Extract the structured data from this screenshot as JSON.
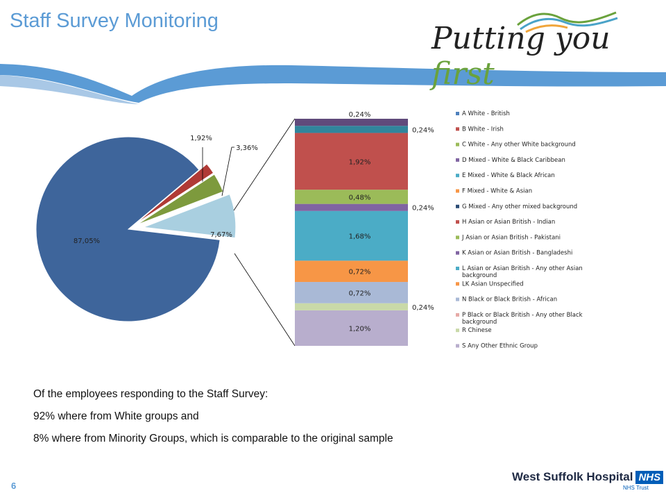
{
  "header": {
    "title": "Staff Survey Monitoring",
    "logo_text_main": "Putting you ",
    "logo_text_accent": "first"
  },
  "chart_data": {
    "type": "pie",
    "pie": {
      "slices": [
        {
          "label": "87,05%",
          "value": 87.05,
          "color": "#3e659b"
        },
        {
          "label": "1,92%",
          "value": 1.92,
          "color": "#b03a36"
        },
        {
          "label": "3,36%",
          "value": 3.36,
          "color": "#7d9a3d"
        },
        {
          "label": "7,67%",
          "value": 7.67,
          "color": "#a9cfe0"
        }
      ]
    },
    "stacked_bar": {
      "segments": [
        {
          "label": "1,20%",
          "value": 1.2,
          "color": "#b8aecd"
        },
        {
          "label": "0,24%",
          "value": 0.24,
          "color": "#c9d9a8"
        },
        {
          "label": "0,72%",
          "value": 0.72,
          "color": "#a9b9d6"
        },
        {
          "label": "0,72%",
          "value": 0.72,
          "color": "#f79646"
        },
        {
          "label": "1,68%",
          "value": 1.68,
          "color": "#4bacc6"
        },
        {
          "label": "0,24%",
          "value": 0.24,
          "color": "#8064a2"
        },
        {
          "label": "0,48%",
          "value": 0.48,
          "color": "#9bbb59"
        },
        {
          "label": "1,92%",
          "value": 1.92,
          "color": "#c0504d"
        },
        {
          "label": "0,24%",
          "value": 0.24,
          "color": "#31859c"
        },
        {
          "label": "0,24%",
          "value": 0.24,
          "color": "#604a7b"
        }
      ]
    },
    "legend": [
      {
        "label": "A White - British",
        "color": "#4f81bd"
      },
      {
        "label": "B White - Irish",
        "color": "#c0504d"
      },
      {
        "label": "C White - Any other White background",
        "color": "#9bbb59"
      },
      {
        "label": "D Mixed - White & Black Caribbean",
        "color": "#8064a2"
      },
      {
        "label": "E Mixed - White & Black African",
        "color": "#4bacc6"
      },
      {
        "label": "F Mixed - White & Asian",
        "color": "#f79646"
      },
      {
        "label": "G Mixed - Any other mixed background",
        "color": "#2c4d75"
      },
      {
        "label": "H Asian or Asian British - Indian",
        "color": "#c0504d"
      },
      {
        "label": "J Asian or Asian British - Pakistani",
        "color": "#9bbb59"
      },
      {
        "label": "K Asian or Asian British - Bangladeshi",
        "color": "#8064a2"
      },
      {
        "label": "L Asian or Asian British - Any other Asian background",
        "color": "#4bacc6"
      },
      {
        "label": "LK Asian Unspecified",
        "color": "#f79646"
      },
      {
        "label": "N Black or Black British - African",
        "color": "#a9b9d6"
      },
      {
        "label": "P Black or Black British - Any other Black background",
        "color": "#e6a9a6"
      },
      {
        "label": "R Chinese",
        "color": "#c9d9a8"
      },
      {
        "label": "S Any Other Ethnic Group",
        "color": "#b8aecd"
      }
    ]
  },
  "summary": {
    "line1": "Of the employees responding to the Staff Survey:",
    "line2": "92% where from White groups and",
    "line3": "8% where from Minority Groups, which is comparable to the original sample"
  },
  "footer": {
    "page_number": "6",
    "org_name": "West Suffolk Hospital",
    "nhs_badge": "NHS",
    "trust": "NHS Trust"
  }
}
